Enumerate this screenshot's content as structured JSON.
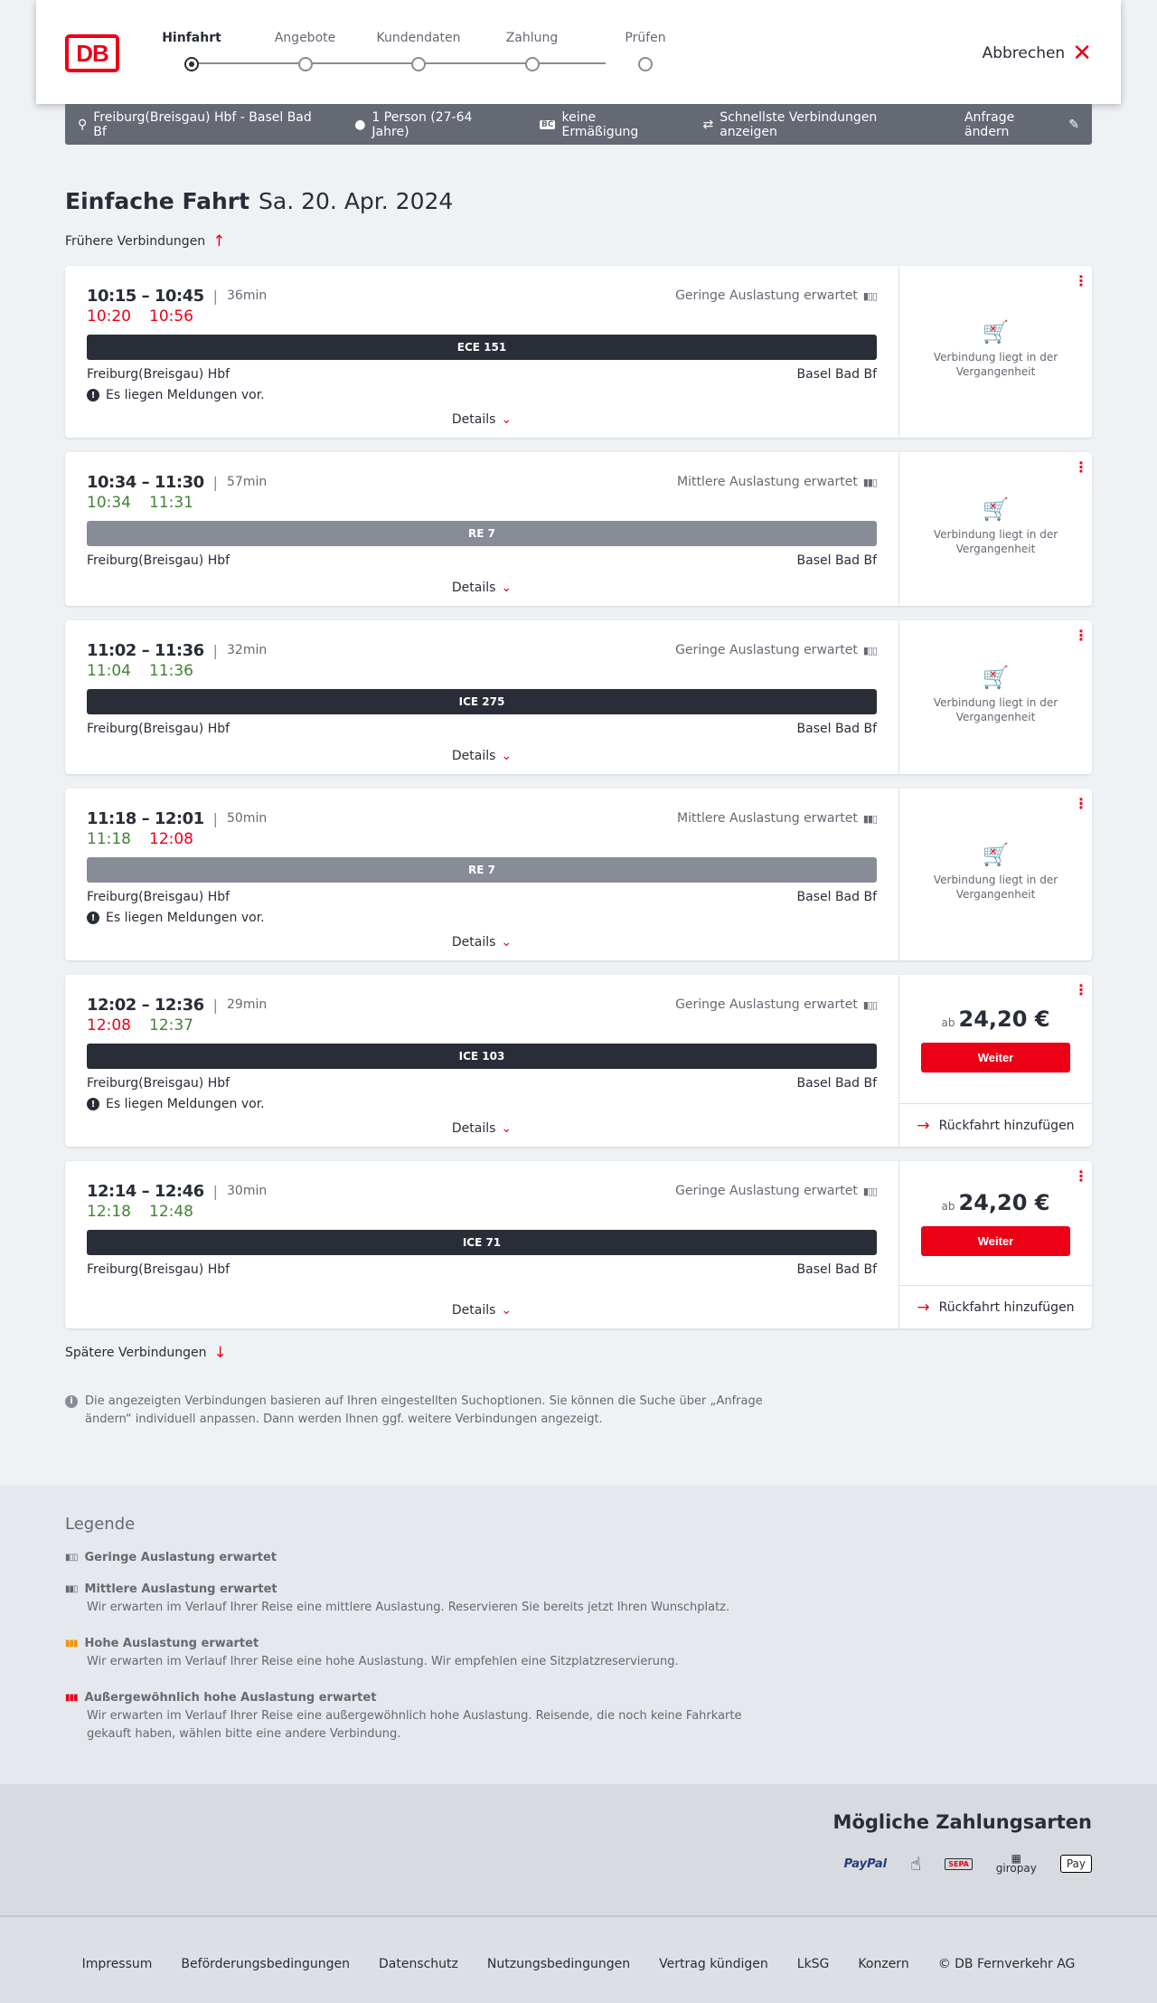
{
  "header": {
    "logo": "DB",
    "steps": [
      "Hinfahrt",
      "Angebote",
      "Kundendaten",
      "Zahlung",
      "Prüfen"
    ],
    "active_step": 0,
    "cancel": "Abbrechen"
  },
  "infobar": {
    "route": "Freiburg(Breisgau) Hbf - Basel Bad Bf",
    "persons": "1 Person (27-64 Jahre)",
    "discount": "keine Ermäßigung",
    "fastest": "Schnellste Verbindungen anzeigen",
    "change": "Anfrage ändern"
  },
  "title": {
    "type": "Einfache Fahrt",
    "date": "Sa. 20. Apr. 2024"
  },
  "earlier": "Frühere Verbindungen",
  "later": "Spätere Verbindungen",
  "details_label": "Details",
  "past_label": "Verbindung liegt in der Vergangenheit",
  "price_prefix": "ab",
  "continue_label": "Weiter",
  "return_label": "Rückfahrt hinzufügen",
  "message_label": "Es liegen Meldungen vor.",
  "connections": [
    {
      "times": "10:15 – 10:45",
      "duration": "36min",
      "occupancy": "Geringe Auslastung erwartet",
      "rt_dep": "10:20",
      "rt_dep_status": "late",
      "rt_arr": "10:56",
      "rt_arr_status": "late",
      "train": "ECE 151",
      "train_style": "dark",
      "from": "Freiburg(Breisgau) Hbf",
      "to": "Basel Bad Bf",
      "message": true,
      "past": true
    },
    {
      "times": "10:34 – 11:30",
      "duration": "57min",
      "occupancy": "Mittlere Auslastung erwartet",
      "rt_dep": "10:34",
      "rt_dep_status": "ok",
      "rt_arr": "11:31",
      "rt_arr_status": "ok",
      "train": "RE 7",
      "train_style": "grey",
      "from": "Freiburg(Breisgau) Hbf",
      "to": "Basel Bad Bf",
      "message": false,
      "past": true
    },
    {
      "times": "11:02 – 11:36",
      "duration": "32min",
      "occupancy": "Geringe Auslastung erwartet",
      "rt_dep": "11:04",
      "rt_dep_status": "ok",
      "rt_arr": "11:36",
      "rt_arr_status": "ok",
      "train": "ICE 275",
      "train_style": "dark",
      "from": "Freiburg(Breisgau) Hbf",
      "to": "Basel Bad Bf",
      "message": false,
      "past": true
    },
    {
      "times": "11:18 – 12:01",
      "duration": "50min",
      "occupancy": "Mittlere Auslastung erwartet",
      "rt_dep": "11:18",
      "rt_dep_status": "ok",
      "rt_arr": "12:08",
      "rt_arr_status": "late",
      "train": "RE 7",
      "train_style": "grey",
      "from": "Freiburg(Breisgau) Hbf",
      "to": "Basel Bad Bf",
      "message": true,
      "past": true
    },
    {
      "times": "12:02 – 12:36",
      "duration": "29min",
      "occupancy": "Geringe Auslastung erwartet",
      "rt_dep": "12:08",
      "rt_dep_status": "late",
      "rt_arr": "12:37",
      "rt_arr_status": "ok",
      "train": "ICE 103",
      "train_style": "dark",
      "from": "Freiburg(Breisgau) Hbf",
      "to": "Basel Bad Bf",
      "message": true,
      "past": false,
      "price": "24,20 €"
    },
    {
      "times": "12:14 – 12:46",
      "duration": "30min",
      "occupancy": "Geringe Auslastung erwartet",
      "rt_dep": "12:18",
      "rt_dep_status": "ok",
      "rt_arr": "12:48",
      "rt_arr_status": "ok",
      "train": "ICE 71",
      "train_style": "dark",
      "from": "Freiburg(Breisgau) Hbf",
      "to": "Basel Bad Bf",
      "message": false,
      "past": false,
      "price": "24,20 €"
    }
  ],
  "note": "Die angezeigten Verbindungen basieren auf Ihren eingestellten Suchoptionen. Sie können die Suche über „Anfrage ändern“ individuell anpassen. Dann werden Ihnen ggf. weitere Verbindungen angezeigt.",
  "legend": {
    "title": "Legende",
    "items": [
      {
        "title": "Geringe Auslastung erwartet",
        "text": "",
        "color": "#646973"
      },
      {
        "title": "Mittlere Auslastung erwartet",
        "text": "Wir erwarten im Verlauf Ihrer Reise eine mittlere Auslastung. Reservieren Sie bereits jetzt Ihren Wunschplatz.",
        "color": "#646973"
      },
      {
        "title": "Hohe Auslastung erwartet",
        "text": "Wir erwarten im Verlauf Ihrer Reise eine hohe Auslastung. Wir empfehlen eine Sitzplatzreservierung.",
        "color": "#f39200"
      },
      {
        "title": "Außergewöhnlich hohe Auslastung erwartet",
        "text": "Wir erwarten im Verlauf Ihrer Reise eine außergewöhnlich hohe Auslastung. Reisende, die noch keine Fahrkarte gekauft haben, wählen bitte eine andere Verbindung.",
        "color": "#ec0016"
      }
    ]
  },
  "payment": {
    "title": "Mögliche Zahlungsarten",
    "methods": [
      "PayPal",
      "Kreditkarte",
      "SEPA",
      "giropay",
      "Pay"
    ]
  },
  "footer": [
    "Impressum",
    "Beförderungsbedingungen",
    "Datenschutz",
    "Nutzungsbedingungen",
    "Vertrag kündigen",
    "LkSG",
    "Konzern",
    "© DB Fernverkehr AG"
  ]
}
